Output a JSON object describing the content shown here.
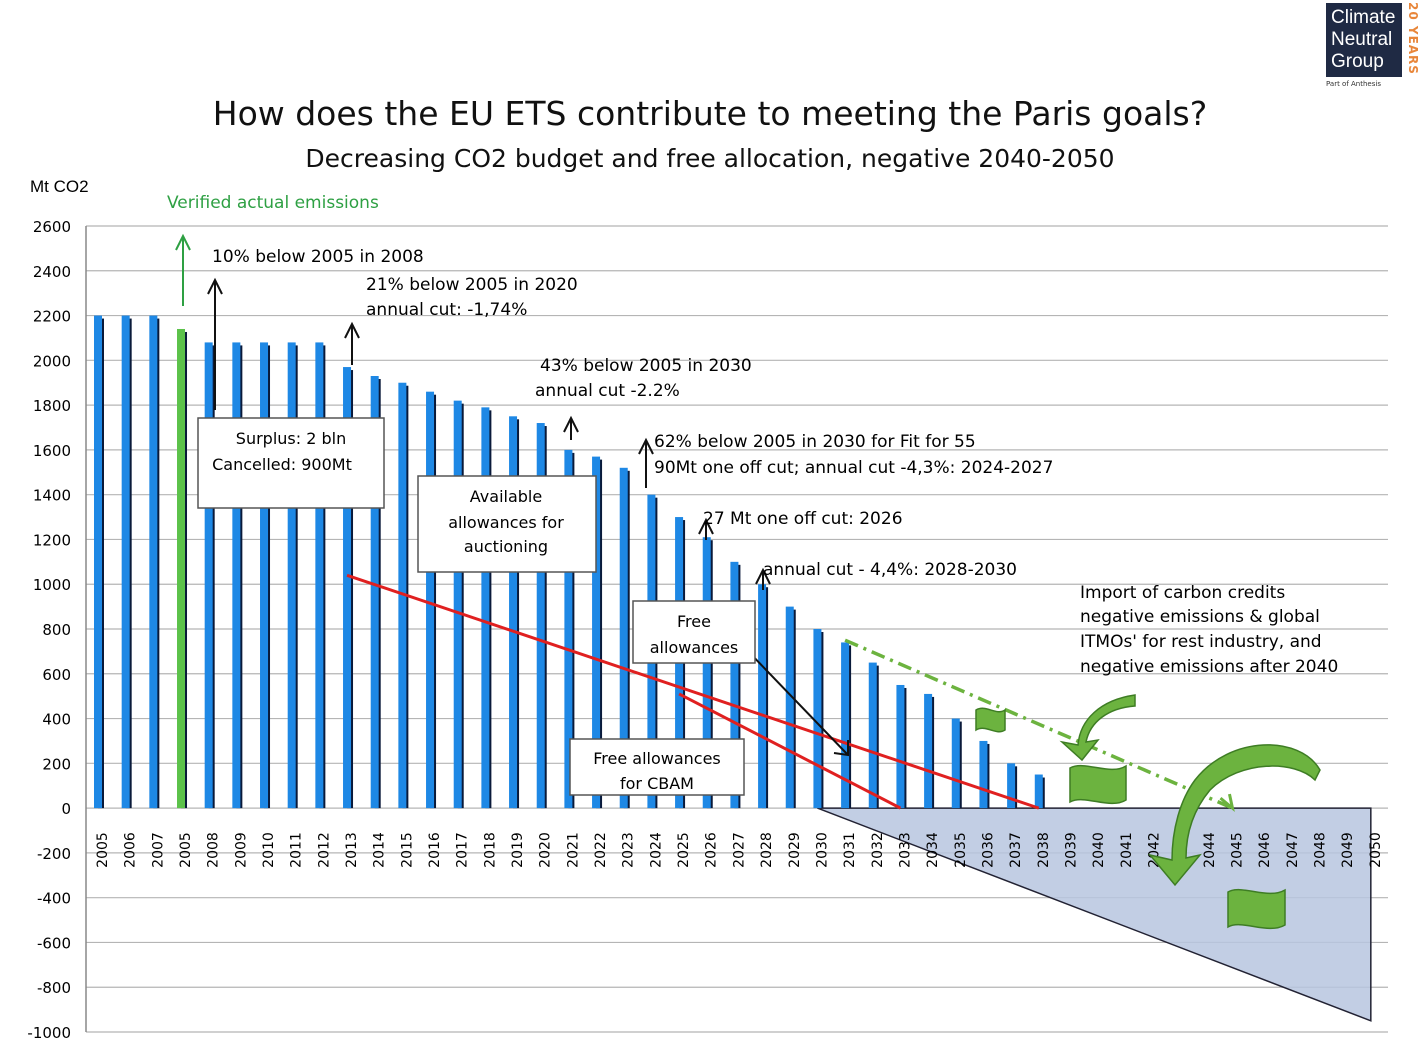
{
  "title": "How does the EU ETS contribute to meeting the Paris goals?",
  "subtitle": "Decreasing CO2 budget and free allocation, negative 2040-2050",
  "logo": {
    "lines": [
      "Climate",
      "Neutral",
      "Group"
    ],
    "part_of": "Part of Anthesis",
    "years": "20 YEARS"
  },
  "chart_data": {
    "type": "bar",
    "ylabel": "Mt CO2",
    "ylim": [
      -1000,
      2600
    ],
    "yticks": [
      2600,
      2400,
      2200,
      2000,
      1800,
      1600,
      1400,
      1200,
      1000,
      800,
      600,
      400,
      200,
      0,
      -200,
      -400,
      -600,
      -800,
      -1000
    ],
    "grid": true,
    "categories": [
      "2005",
      "2006",
      "2007",
      "2005",
      "2008",
      "2009",
      "2010",
      "2011",
      "2012",
      "2013",
      "2014",
      "2015",
      "2016",
      "2017",
      "2018",
      "2019",
      "2020",
      "2021",
      "2022",
      "2023",
      "2024",
      "2025",
      "2026",
      "2027",
      "2028",
      "2029",
      "2030",
      "2031",
      "2032",
      "2033",
      "2034",
      "2035",
      "2036",
      "2037",
      "2038",
      "2039",
      "2040",
      "2041",
      "2042",
      "2043",
      "2044",
      "2045",
      "2046",
      "2047",
      "2048",
      "2049",
      "2050"
    ],
    "values": [
      2200,
      2200,
      2200,
      2140,
      2080,
      2080,
      2080,
      2080,
      2080,
      1970,
      1930,
      1900,
      1860,
      1820,
      1790,
      1750,
      1720,
      1600,
      1570,
      1520,
      1400,
      1300,
      1210,
      1100,
      1000,
      900,
      800,
      740,
      650,
      550,
      510,
      400,
      300,
      200,
      150,
      null,
      null,
      null,
      null,
      null,
      null,
      null,
      null,
      null,
      null,
      null,
      null
    ],
    "highlight_index": 3,
    "bar_colors": {
      "primary": "#1e88e5",
      "shadow": "#0a1a3a",
      "highlight": "#5cc24a"
    },
    "lines": [
      {
        "name": "Free allowances",
        "color": "#e02020",
        "points": [
          [
            "2013",
            1040
          ],
          [
            "2038",
            0
          ]
        ]
      },
      {
        "name": "Free allowances for CBAM",
        "color": "#e02020",
        "points": [
          [
            "2025",
            510
          ],
          [
            "2033",
            0
          ]
        ]
      },
      {
        "name": "Import of carbon credits",
        "color": "#6cb33f",
        "style": "dash-dot",
        "points": [
          [
            "2031",
            750
          ],
          [
            "2045",
            0
          ]
        ]
      }
    ],
    "negative_area": {
      "color": "#b7c6df",
      "points": [
        [
          "2030",
          0
        ],
        [
          "2050",
          0
        ],
        [
          "2050",
          -950
        ]
      ]
    },
    "annotations": {
      "verified": "Verified actual emissions",
      "a2008": "10% below 2005 in 2008",
      "a2020_1": "21% below 2005 in 2020",
      "a2020_2": "annual cut: -1,74%",
      "a2030_1": "43% below 2005 in 2030",
      "a2030_2": "annual cut  -2.2%",
      "a55_1": "62% below 2005 in 2030 for Fit for 55",
      "a55_2": "90Mt one off cut; annual cut -4,3%: 2024-2027",
      "a2026": "27 Mt one off cut: 2026",
      "a2028": "annual cut - 4,4%:  2028-2030",
      "import_1": "Import of carbon credits",
      "import_2": "negative emissions & global",
      "import_3": "ITMOs' for rest industry, and",
      "import_4": "negative emissions after 2040"
    },
    "boxes": {
      "surplus_1": "Surplus: 2 bln",
      "surplus_2": "Cancelled: 900Mt",
      "auction_1": "Available",
      "auction_2": "allowances for",
      "auction_3": "auctioning",
      "free_1": "Free",
      "free_2": "allowances",
      "cbam_1": "Free allowances",
      "cbam_2": "for CBAM"
    }
  }
}
